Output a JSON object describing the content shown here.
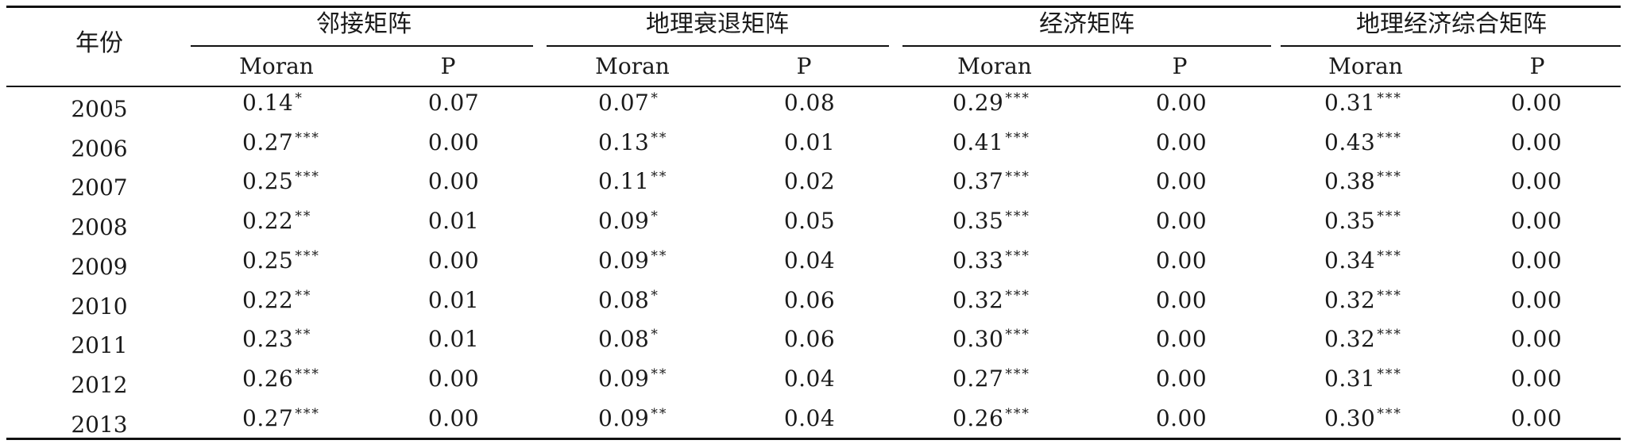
{
  "table": {
    "year_header": "年份",
    "groups": [
      {
        "label": "邻接矩阵",
        "moran_label": "Moran",
        "p_label": "P"
      },
      {
        "label": "地理衰退矩阵",
        "moran_label": "Moran",
        "p_label": "P"
      },
      {
        "label": "经济矩阵",
        "moran_label": "Moran",
        "p_label": "P"
      },
      {
        "label": "地理经济综合矩阵",
        "moran_label": "Moran",
        "p_label": "P"
      }
    ],
    "rows": [
      {
        "year": "2005",
        "cells": [
          {
            "moran": "0.14",
            "stars": "*",
            "p": "0.07"
          },
          {
            "moran": "0.07",
            "stars": "*",
            "p": "0.08"
          },
          {
            "moran": "0.29",
            "stars": "***",
            "p": "0.00"
          },
          {
            "moran": "0.31",
            "stars": "***",
            "p": "0.00"
          }
        ]
      },
      {
        "year": "2006",
        "cells": [
          {
            "moran": "0.27",
            "stars": "***",
            "p": "0.00"
          },
          {
            "moran": "0.13",
            "stars": "**",
            "p": "0.01"
          },
          {
            "moran": "0.41",
            "stars": "***",
            "p": "0.00"
          },
          {
            "moran": "0.43",
            "stars": "***",
            "p": "0.00"
          }
        ]
      },
      {
        "year": "2007",
        "cells": [
          {
            "moran": "0.25",
            "stars": "***",
            "p": "0.00"
          },
          {
            "moran": "0.11",
            "stars": "**",
            "p": "0.02"
          },
          {
            "moran": "0.37",
            "stars": "***",
            "p": "0.00"
          },
          {
            "moran": "0.38",
            "stars": "***",
            "p": "0.00"
          }
        ]
      },
      {
        "year": "2008",
        "cells": [
          {
            "moran": "0.22",
            "stars": "**",
            "p": "0.01"
          },
          {
            "moran": "0.09",
            "stars": "*",
            "p": "0.05"
          },
          {
            "moran": "0.35",
            "stars": "***",
            "p": "0.00"
          },
          {
            "moran": "0.35",
            "stars": "***",
            "p": "0.00"
          }
        ]
      },
      {
        "year": "2009",
        "cells": [
          {
            "moran": "0.25",
            "stars": "***",
            "p": "0.00"
          },
          {
            "moran": "0.09",
            "stars": "**",
            "p": "0.04"
          },
          {
            "moran": "0.33",
            "stars": "***",
            "p": "0.00"
          },
          {
            "moran": "0.34",
            "stars": "***",
            "p": "0.00"
          }
        ]
      },
      {
        "year": "2010",
        "cells": [
          {
            "moran": "0.22",
            "stars": "**",
            "p": "0.01"
          },
          {
            "moran": "0.08",
            "stars": "*",
            "p": "0.06"
          },
          {
            "moran": "0.32",
            "stars": "***",
            "p": "0.00"
          },
          {
            "moran": "0.32",
            "stars": "***",
            "p": "0.00"
          }
        ]
      },
      {
        "year": "2011",
        "cells": [
          {
            "moran": "0.23",
            "stars": "**",
            "p": "0.01"
          },
          {
            "moran": "0.08",
            "stars": "*",
            "p": "0.06"
          },
          {
            "moran": "0.30",
            "stars": "***",
            "p": "0.00"
          },
          {
            "moran": "0.32",
            "stars": "***",
            "p": "0.00"
          }
        ]
      },
      {
        "year": "2012",
        "cells": [
          {
            "moran": "0.26",
            "stars": "***",
            "p": "0.00"
          },
          {
            "moran": "0.09",
            "stars": "**",
            "p": "0.04"
          },
          {
            "moran": "0.27",
            "stars": "***",
            "p": "0.00"
          },
          {
            "moran": "0.31",
            "stars": "***",
            "p": "0.00"
          }
        ]
      },
      {
        "year": "2013",
        "cells": [
          {
            "moran": "0.27",
            "stars": "***",
            "p": "0.00"
          },
          {
            "moran": "0.09",
            "stars": "**",
            "p": "0.04"
          },
          {
            "moran": "0.26",
            "stars": "***",
            "p": "0.00"
          },
          {
            "moran": "0.30",
            "stars": "***",
            "p": "0.00"
          }
        ]
      }
    ]
  }
}
